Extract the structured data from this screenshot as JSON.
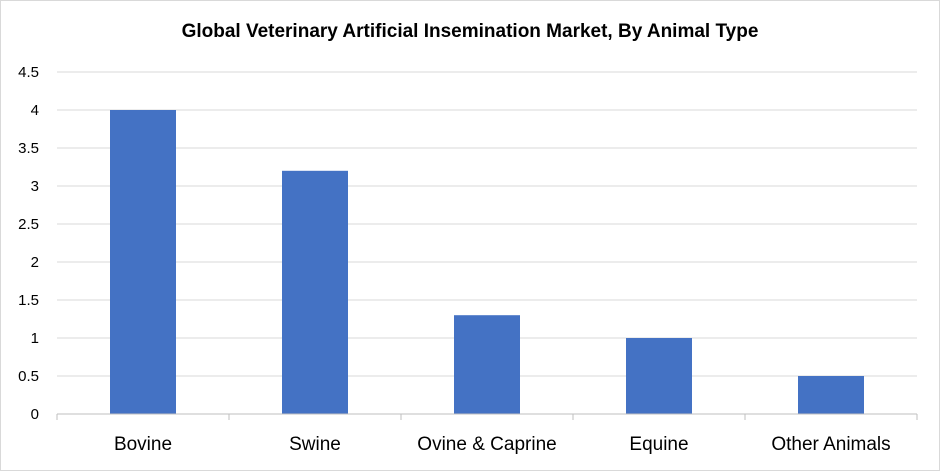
{
  "chart_data": {
    "type": "bar",
    "title": "Global Veterinary Artificial Insemination Market, By Animal Type",
    "xlabel": "",
    "ylabel": "",
    "categories": [
      "Bovine",
      "Swine",
      "Ovine & Caprine",
      "Equine",
      "Other Animals"
    ],
    "values": [
      4.0,
      3.2,
      1.3,
      1.0,
      0.5
    ],
    "ylim": [
      0,
      4.5
    ],
    "yticks": [
      "0",
      "0.5",
      "1",
      "1.5",
      "2",
      "2.5",
      "3",
      "3.5",
      "4",
      "4.5"
    ],
    "grid": "horizontal",
    "legend": "none",
    "colors": {
      "bar": "#4472c4",
      "grid": "#d9d9d9",
      "axis": "#bfbfbf"
    }
  }
}
